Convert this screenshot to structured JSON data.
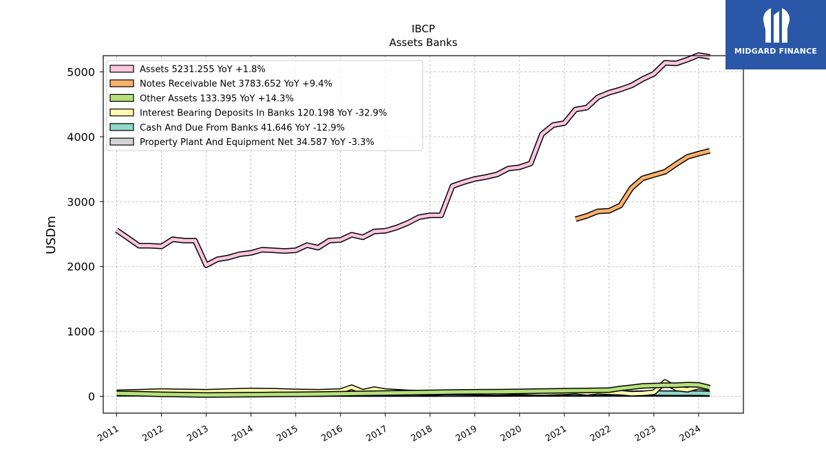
{
  "logo": {
    "text": "MIDGARD FINANCE",
    "bg": "#2a57a8"
  },
  "chart_data": {
    "type": "area",
    "title": "IBCP",
    "subtitle": "Assets Banks",
    "ylabel": "USDm",
    "xlabel": "",
    "xlim": [
      2010.7,
      2025.0
    ],
    "ylim": [
      -260,
      5250
    ],
    "yticks": [
      0,
      1000,
      2000,
      3000,
      4000,
      5000
    ],
    "xticks": [
      "2011",
      "2012",
      "2013",
      "2014",
      "2015",
      "2016",
      "2017",
      "2018",
      "2019",
      "2020",
      "2021",
      "2022",
      "2023",
      "2024"
    ],
    "grid": true,
    "legend_position": "top-left",
    "series": [
      {
        "name": "Assets",
        "legend": "Assets  5231.255 YoY +1.8%",
        "color": "#f9c6dc",
        "x": [
          2011.0,
          2011.25,
          2011.5,
          2011.75,
          2012.0,
          2012.25,
          2012.5,
          2012.75,
          2013.0,
          2013.25,
          2013.5,
          2013.75,
          2014.0,
          2014.25,
          2014.5,
          2014.75,
          2015.0,
          2015.25,
          2015.5,
          2015.75,
          2016.0,
          2016.25,
          2016.5,
          2016.75,
          2017.0,
          2017.25,
          2017.5,
          2017.75,
          2018.0,
          2018.25,
          2018.5,
          2018.75,
          2019.0,
          2019.25,
          2019.5,
          2019.75,
          2020.0,
          2020.25,
          2020.5,
          2020.75,
          2021.0,
          2021.25,
          2021.5,
          2021.75,
          2022.0,
          2022.25,
          2022.5,
          2022.75,
          2023.0,
          2023.25,
          2023.5,
          2023.75,
          2024.0,
          2024.25
        ],
        "values": [
          2560,
          2440,
          2320,
          2320,
          2310,
          2420,
          2400,
          2400,
          2020,
          2110,
          2140,
          2190,
          2210,
          2260,
          2250,
          2240,
          2250,
          2330,
          2290,
          2400,
          2410,
          2490,
          2450,
          2540,
          2550,
          2600,
          2670,
          2760,
          2790,
          2790,
          3240,
          3300,
          3350,
          3380,
          3420,
          3510,
          3530,
          3590,
          4040,
          4180,
          4210,
          4420,
          4450,
          4610,
          4680,
          4730,
          4790,
          4890,
          4970,
          5140,
          5130,
          5190,
          5260,
          5231.255
        ]
      },
      {
        "name": "Notes Receivable Net",
        "legend": "Notes Receivable Net  3783.652 YoY +9.4%",
        "color": "#f9b06c",
        "x": [
          2021.25,
          2021.5,
          2021.75,
          2022.0,
          2022.25,
          2022.5,
          2022.75,
          2023.0,
          2023.25,
          2023.5,
          2023.75,
          2024.0,
          2024.25
        ],
        "values": [
          2730,
          2780,
          2850,
          2860,
          2940,
          3210,
          3360,
          3410,
          3460,
          3580,
          3690,
          3740,
          3783.652
        ]
      },
      {
        "name": "Other Assets",
        "legend": "Other Assets  133.395 YoY +14.3%",
        "color": "#b6e07a",
        "x": [
          2011.0,
          2011.5,
          2012.0,
          2012.5,
          2013.0,
          2013.5,
          2014.0,
          2014.5,
          2015.0,
          2015.5,
          2016.0,
          2016.5,
          2017.0,
          2017.5,
          2018.0,
          2018.5,
          2019.0,
          2019.5,
          2020.0,
          2020.5,
          2021.0,
          2021.5,
          2022.0,
          2022.25,
          2022.5,
          2022.75,
          2023.0,
          2023.25,
          2023.5,
          2023.75,
          2024.0,
          2024.25
        ],
        "values": [
          45,
          40,
          30,
          25,
          20,
          22,
          25,
          28,
          30,
          35,
          40,
          45,
          50,
          55,
          60,
          65,
          70,
          72,
          75,
          80,
          85,
          90,
          95,
          120,
          140,
          160,
          165,
          170,
          170,
          180,
          175,
          133.395
        ]
      },
      {
        "name": "Interest Bearing Deposits In Banks",
        "legend": "Interest Bearing Deposits In Banks  120.198 YoY -32.9%",
        "color": "#fdfbb0",
        "x": [
          2011.0,
          2011.5,
          2012.0,
          2012.5,
          2013.0,
          2013.5,
          2014.0,
          2014.5,
          2015.0,
          2015.5,
          2016.0,
          2016.25,
          2016.5,
          2016.75,
          2017.0,
          2017.5,
          2018.0,
          2018.5,
          2019.0,
          2019.5,
          2020.0,
          2020.5,
          2021.0,
          2021.25,
          2021.5,
          2021.75,
          2022.0,
          2022.25,
          2022.5,
          2022.75,
          2023.0,
          2023.25,
          2023.5,
          2023.75,
          2024.0,
          2024.25
        ],
        "values": [
          60,
          70,
          80,
          75,
          70,
          80,
          90,
          85,
          75,
          70,
          80,
          140,
          70,
          110,
          80,
          60,
          50,
          60,
          55,
          50,
          60,
          50,
          60,
          70,
          50,
          70,
          60,
          55,
          40,
          45,
          60,
          220,
          120,
          100,
          150,
          120.198
        ]
      },
      {
        "name": "Cash And Due From Banks",
        "legend": "Cash And Due From Banks  41.646 YoY -12.9%",
        "color": "#8fd9c8",
        "x": [
          2011.0,
          2011.5,
          2012.0,
          2012.5,
          2013.0,
          2013.5,
          2014.0,
          2014.5,
          2015.0,
          2015.5,
          2016.0,
          2016.5,
          2017.0,
          2017.5,
          2018.0,
          2018.5,
          2019.0,
          2019.5,
          2020.0,
          2020.5,
          2021.0,
          2021.5,
          2022.0,
          2022.5,
          2023.0,
          2023.5,
          2024.0,
          2024.25
        ],
        "values": [
          40,
          42,
          38,
          40,
          35,
          38,
          42,
          40,
          38,
          36,
          40,
          42,
          40,
          38,
          36,
          38,
          40,
          42,
          45,
          44,
          46,
          44,
          48,
          45,
          50,
          46,
          48,
          41.646
        ]
      },
      {
        "name": "Property Plant And Equipment Net",
        "legend": "Property Plant And Equipment Net  34.587 YoY -3.3%",
        "color": "#d3d3d3",
        "x": [
          2011.0,
          2011.5,
          2012.0,
          2012.5,
          2013.0,
          2013.5,
          2014.0,
          2014.5,
          2015.0,
          2015.5,
          2016.0,
          2016.5,
          2017.0,
          2017.5,
          2018.0,
          2018.5,
          2019.0,
          2019.5,
          2020.0,
          2020.5,
          2021.0,
          2021.5,
          2022.0,
          2022.5,
          2023.0,
          2023.5,
          2024.0,
          2024.25
        ],
        "values": [
          40,
          39,
          38,
          38,
          37,
          37,
          36,
          36,
          36,
          35,
          35,
          35,
          35,
          35,
          35,
          35,
          35,
          35,
          36,
          36,
          36,
          36,
          36,
          36,
          36,
          36,
          35,
          34.587
        ]
      }
    ]
  }
}
